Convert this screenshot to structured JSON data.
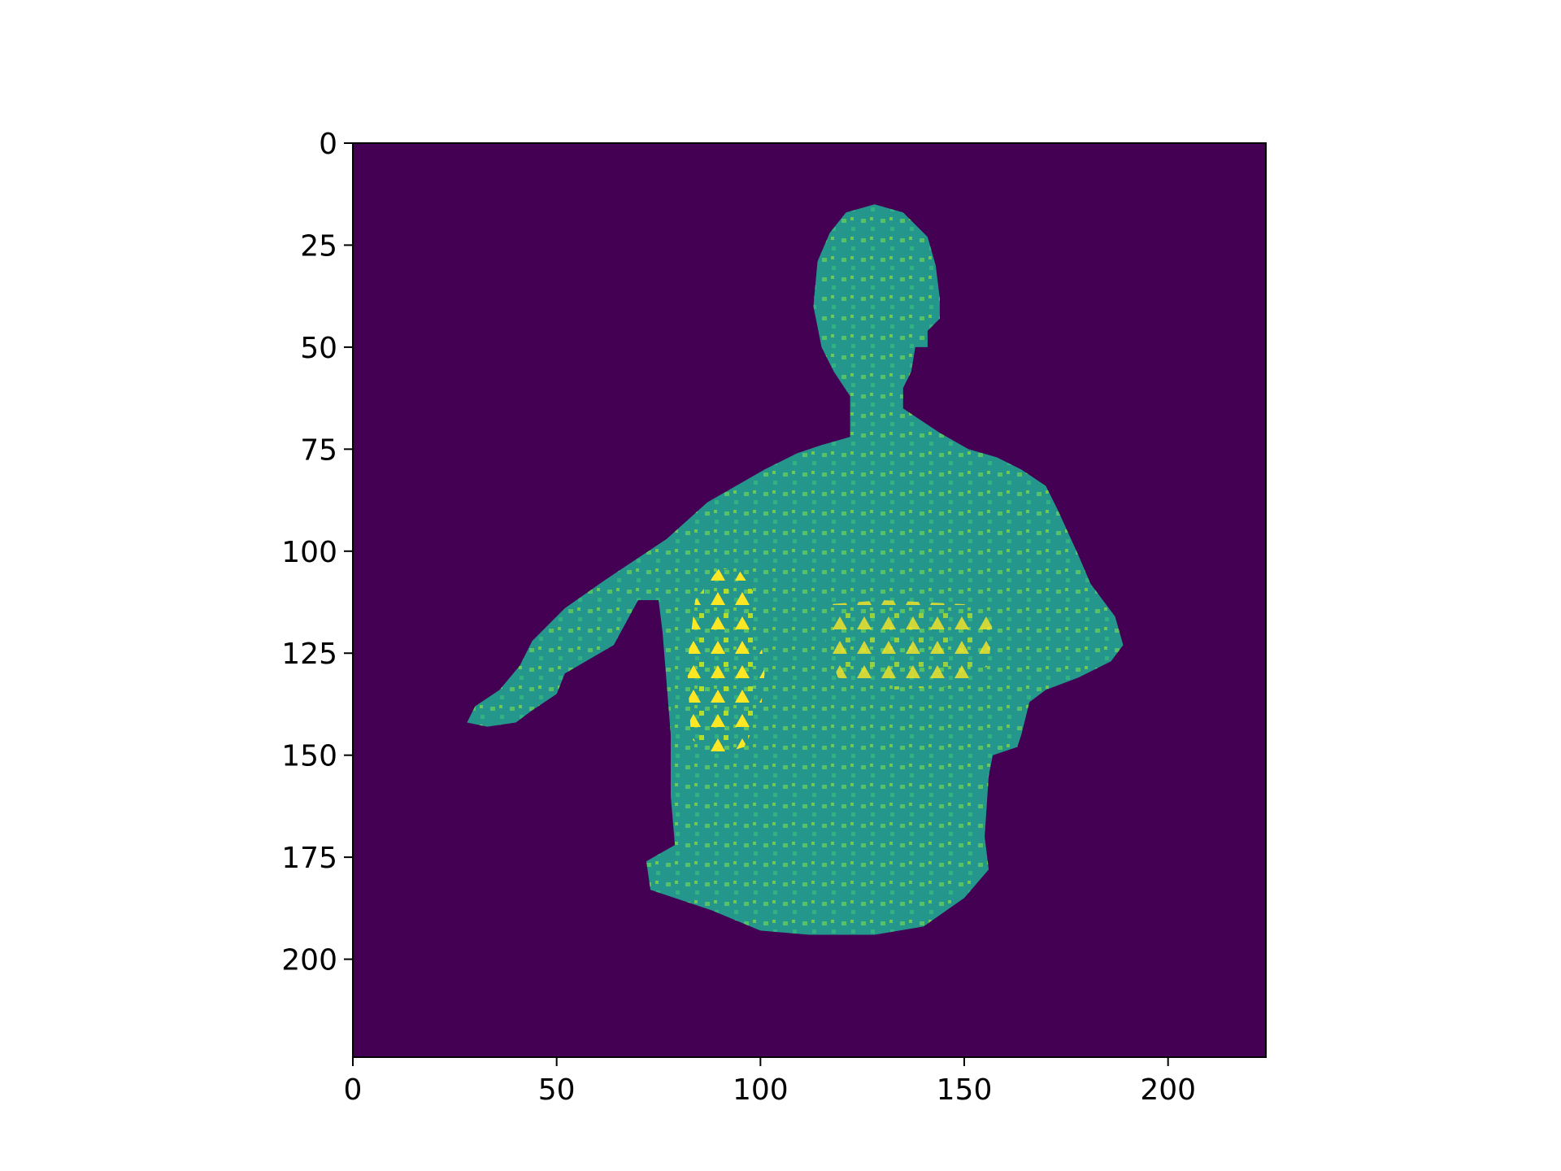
{
  "chart_data": {
    "type": "heatmap",
    "title": "",
    "xlabel": "",
    "ylabel": "",
    "xlim": [
      0,
      224
    ],
    "ylim": [
      224,
      0
    ],
    "x_ticks": [
      "0",
      "50",
      "100",
      "150",
      "200"
    ],
    "y_ticks": [
      "0",
      "25",
      "50",
      "75",
      "100",
      "125",
      "150",
      "175",
      "200"
    ],
    "colormap": "viridis",
    "colors": {
      "background": "#440154",
      "body": "#24968b",
      "highlight_light": "#7ad151",
      "highlight_bright": "#fde725"
    },
    "grid": false,
    "legend": "none"
  }
}
